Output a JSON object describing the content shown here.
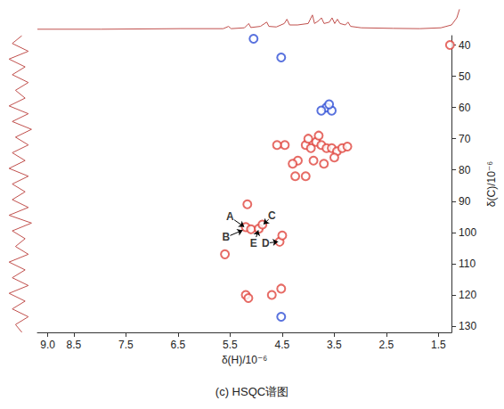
{
  "chart_data": {
    "type": "scatter",
    "title": "(c) HSQC谱图",
    "x_label": "δ(H)/10⁻⁶",
    "y_label": "δ(C)/10⁻⁶",
    "xlim": [
      9.2,
      1.25
    ],
    "xticks": [
      {
        "value": 9,
        "label": "9.0"
      },
      8.5,
      7.5,
      6.5,
      5.5,
      4.5,
      3.5,
      2.5,
      1.5
    ],
    "ylim": [
      37,
      132
    ],
    "yticks": [
      40,
      50,
      60,
      70,
      80,
      90,
      100,
      110,
      120,
      130
    ],
    "grid": false,
    "series": [
      {
        "color": "#e0463f",
        "marker": "ring",
        "x": [
          5.6,
          5.17,
          5.2,
          5.1,
          4.95,
          4.88,
          4.55,
          4.5,
          4.05,
          3.95,
          3.85,
          3.75,
          3.65,
          3.55,
          3.45,
          3.35,
          3.25,
          4.0,
          3.8,
          3.9,
          4.2,
          3.7,
          3.5,
          4.3,
          4.45,
          4.6,
          4.25,
          4.05,
          5.2,
          4.7,
          4.52,
          5.15,
          1.28
        ],
        "values": [
          107,
          91,
          98.3,
          99,
          98.8,
          97.5,
          103,
          101,
          72,
          73,
          71,
          72,
          73,
          73,
          74,
          73,
          72.5,
          70,
          69,
          77,
          77,
          78,
          76,
          78,
          72,
          72,
          82,
          82,
          120,
          120,
          118,
          121,
          40
        ]
      },
      {
        "color": "#2f4fd6",
        "marker": "ring",
        "x": [
          3.65,
          3.55,
          3.75,
          4.52,
          4.52,
          5.05,
          3.6
        ],
        "values": [
          60,
          61,
          61,
          127,
          44,
          38,
          59
        ]
      }
    ],
    "annotations": [
      {
        "text": "A",
        "x": 5.5,
        "y": 95,
        "arrow_from": [
          5.42,
          96
        ],
        "arrow_to": [
          5.23,
          98.2
        ]
      },
      {
        "text": "B",
        "x": 5.58,
        "y": 101.5,
        "arrow_from": [
          5.5,
          101
        ],
        "arrow_to": [
          5.26,
          99.3
        ]
      },
      {
        "text": "C",
        "x": 4.7,
        "y": 94.5,
        "arrow_from": [
          4.76,
          95.8
        ],
        "arrow_to": [
          4.86,
          97.4
        ]
      },
      {
        "text": "E",
        "x": 5.05,
        "y": 103.5,
        "arrow_from": [
          5.0,
          101.5
        ],
        "arrow_to": [
          4.96,
          99.3
        ]
      },
      {
        "text": "D",
        "x": 4.82,
        "y": 103.5,
        "arrow_from": [
          4.74,
          103.3
        ],
        "arrow_to": [
          4.58,
          103
        ]
      }
    ],
    "top_trace": {
      "color": "#c0504d",
      "ylim": [
        0,
        10
      ],
      "x": [
        9.2,
        8.0,
        6.5,
        5.7,
        5.6,
        5.55,
        5.3,
        5.22,
        5.18,
        5.0,
        4.88,
        4.84,
        4.7,
        4.55,
        4.5,
        4.45,
        4.3,
        4.1,
        4.02,
        3.98,
        3.9,
        3.85,
        3.8,
        3.7,
        3.65,
        3.6,
        3.55,
        3.5,
        3.4,
        3.35,
        3.3,
        3.1,
        2.5,
        2.0,
        1.6,
        1.4,
        1.3,
        1.25
      ],
      "values": [
        1,
        1,
        1.2,
        1.2,
        2,
        1.2,
        1.5,
        3,
        1.6,
        2,
        3.5,
        2,
        1.8,
        3,
        4.5,
        2.5,
        2.5,
        3,
        6,
        3,
        4,
        5,
        3,
        3.5,
        5,
        3,
        4.5,
        3,
        2.5,
        3.5,
        2,
        1.5,
        1.3,
        1.2,
        1.5,
        2.5,
        5,
        8
      ]
    },
    "left_trace": {
      "color": "#c0504d",
      "xlim": [
        0,
        10
      ],
      "y": [
        37,
        39.5,
        42,
        44.5,
        47,
        49.5,
        52,
        54.5,
        57,
        59.5,
        62,
        64.5,
        67,
        69.5,
        72,
        74.5,
        77,
        79.5,
        82,
        84.5,
        87,
        89.5,
        92,
        94.5,
        97,
        99.5,
        102,
        104.5,
        107,
        109.5,
        112,
        114.5,
        117,
        119.5,
        122,
        124.5,
        127,
        129.5,
        132
      ],
      "values": [
        6,
        3,
        8,
        2,
        7,
        3,
        8,
        4,
        7,
        2,
        8,
        3,
        9,
        4,
        8,
        3,
        7,
        2,
        8,
        3,
        7,
        3,
        8,
        2,
        9,
        3,
        7,
        4,
        8,
        2,
        7,
        3,
        8,
        2,
        7,
        3,
        8,
        4,
        6
      ]
    }
  }
}
